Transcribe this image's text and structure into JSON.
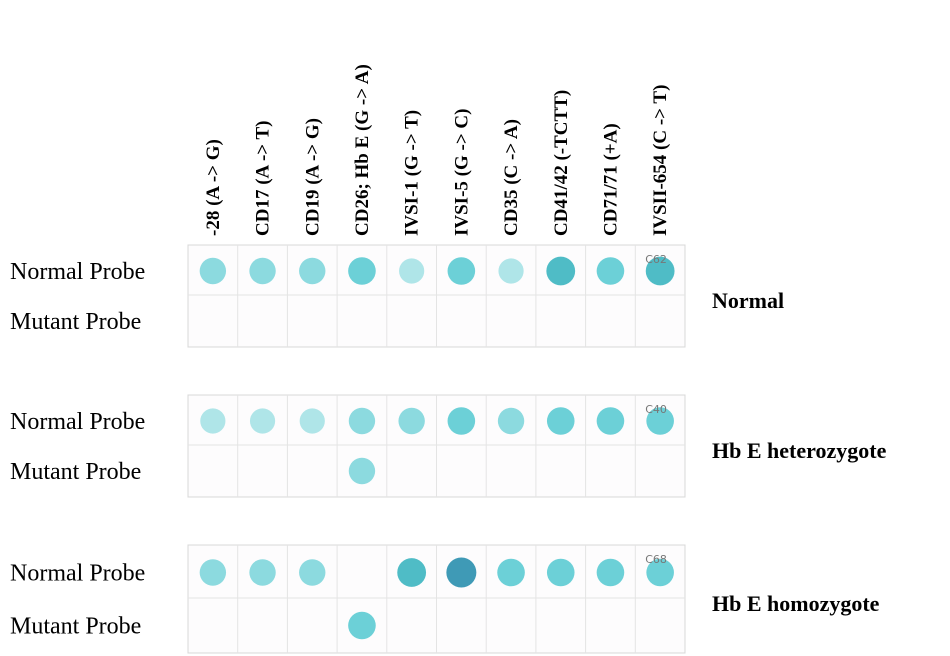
{
  "columns": [
    "-28 (A -> G)",
    "CD17 (A -> T)",
    "CD19 (A -> G)",
    "CD26; Hb E (G -> A)",
    "IVSI-1 (G -> T)",
    "IVSI-5 (G -> C)",
    "CD35 (C -> A)",
    "CD41/42 (-TCTT)",
    "CD71/71 (+A)",
    "IVSII-654 (C -> T)"
  ],
  "panels": [
    {
      "rows": [
        "Normal Probe",
        "Mutant Probe"
      ],
      "genotype": "Normal",
      "strip_label": "C62"
    },
    {
      "rows": [
        "Normal Probe",
        "Mutant Probe"
      ],
      "genotype": "Hb E heterozygote",
      "strip_label": "C40"
    },
    {
      "rows": [
        "Normal Probe",
        "Mutant Probe"
      ],
      "genotype": "Hb E homozygote",
      "strip_label": "C68"
    }
  ]
}
